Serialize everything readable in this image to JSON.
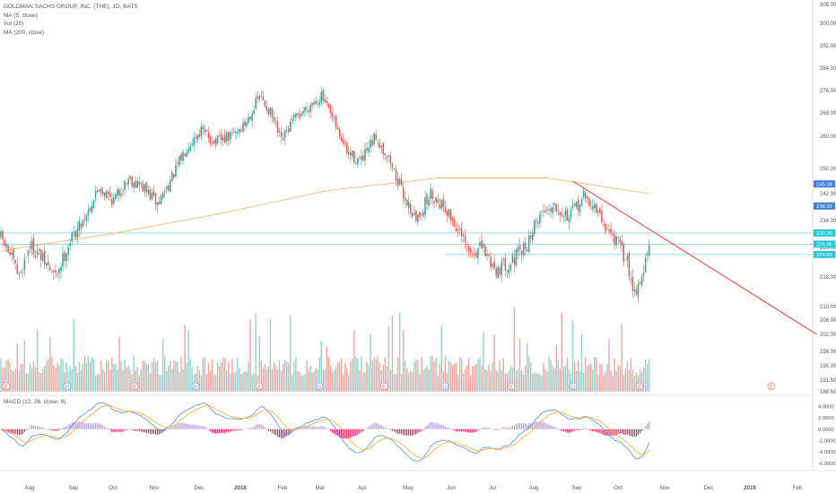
{
  "header": {
    "symbol_line": "GOLDMAN SACHS GROUP, INC. (THE), 1D, BATS",
    "indicators": [
      "MA (5, close)",
      "Vol (20)",
      "MA (200, close)"
    ]
  },
  "macd_panel": {
    "label": "MACD (12, 26, close, 9)"
  },
  "colors": {
    "up": "#26a69a",
    "down": "#ef5350",
    "vol_up": "#8fd4cb",
    "vol_down": "#f5a3a1",
    "ma200": "#f5b773",
    "trendline": "#e53935",
    "hline": "#6fd0d8",
    "macd_line": "#4e8fe8",
    "signal_line": "#ffa726",
    "hist_pos": "#b39ddb",
    "hist_neg": "#e91e63",
    "price_tag_blue": "#3f7fd8",
    "price_tag_teal": "#26c6da"
  },
  "chart_data": [
    {
      "type": "candlestick",
      "title": "GOLDMAN SACHS GROUP, INC. (THE), 1D, BATS",
      "x_axis_labels": [
        "Aug",
        "Sep",
        "Oct",
        "Nov",
        "Dec",
        "2018",
        "Feb",
        "Mar",
        "Apr",
        "May",
        "Jun",
        "Jul",
        "Aug",
        "Sep",
        "Oct",
        "Nov",
        "Dec",
        "2019",
        "Feb"
      ],
      "y_ticks": [
        "308.00",
        "300.00",
        "292.00",
        "284.00",
        "276.00",
        "268.00",
        "260.00",
        "250.00",
        "242.00",
        "234.00",
        "226.00",
        "218.00",
        "210.00",
        "206.00",
        "202.00",
        "198.00",
        "195.00",
        "191.50",
        "188.50"
      ],
      "y_tick_values": [
        308,
        300,
        292,
        284,
        276,
        268,
        260,
        250,
        242,
        234,
        226,
        218,
        210,
        206,
        202,
        198,
        195,
        191.5,
        188.5
      ],
      "price_range": [
        188.5,
        308
      ],
      "price_anchors": [
        [
          0,
          229
        ],
        [
          5,
          224
        ],
        [
          10,
          218
        ],
        [
          16,
          227
        ],
        [
          24,
          222
        ],
        [
          30,
          218
        ],
        [
          38,
          228
        ],
        [
          46,
          235
        ],
        [
          54,
          244
        ],
        [
          62,
          240
        ],
        [
          70,
          247
        ],
        [
          78,
          244
        ],
        [
          86,
          239
        ],
        [
          94,
          247
        ],
        [
          102,
          257
        ],
        [
          110,
          262
        ],
        [
          118,
          258
        ],
        [
          126,
          260
        ],
        [
          134,
          264
        ],
        [
          142,
          274
        ],
        [
          148,
          268
        ],
        [
          154,
          258
        ],
        [
          160,
          265
        ],
        [
          168,
          270
        ],
        [
          176,
          274
        ],
        [
          182,
          266
        ],
        [
          190,
          255
        ],
        [
          198,
          252
        ],
        [
          206,
          260
        ],
        [
          214,
          252
        ],
        [
          220,
          243
        ],
        [
          228,
          234
        ],
        [
          236,
          242
        ],
        [
          244,
          238
        ],
        [
          252,
          230
        ],
        [
          258,
          224
        ],
        [
          264,
          226
        ],
        [
          272,
          220
        ],
        [
          280,
          222
        ],
        [
          288,
          226
        ],
        [
          296,
          236
        ],
        [
          304,
          239
        ],
        [
          312,
          235
        ],
        [
          320,
          241
        ],
        [
          326,
          238
        ],
        [
          332,
          232
        ],
        [
          338,
          228
        ],
        [
          344,
          222
        ],
        [
          348,
          214
        ],
        [
          352,
          218
        ],
        [
          356,
          226
        ]
      ],
      "price_labels": [
        "245.08",
        "238.32",
        "230.30",
        "226.96",
        "224.09"
      ],
      "price_label_values": [
        245.08,
        238.32,
        230.3,
        226.96,
        224.09
      ],
      "moving_average_200": [
        [
          0,
          225
        ],
        [
          60,
          230
        ],
        [
          120,
          236
        ],
        [
          180,
          243
        ],
        [
          240,
          247
        ],
        [
          300,
          247
        ],
        [
          356,
          242
        ]
      ],
      "horizontal_lines": [
        230.3,
        226.96,
        224.09
      ],
      "trendline": [
        [
          314,
          246
        ],
        [
          448,
          202
        ]
      ],
      "event_markers": [
        "E",
        "D",
        "E",
        "D",
        "E",
        "D",
        "E",
        "D",
        "E",
        "D",
        "E",
        "E"
      ],
      "grid": false
    },
    {
      "type": "bar",
      "title": "Vol (20)",
      "series": []
    },
    {
      "type": "line",
      "title": "MACD (12, 26, close, 9)",
      "y_ticks": [
        "4.0000",
        "2.0000",
        "0.0000",
        "-2.0000",
        "-4.0000",
        "-6.0000"
      ],
      "y_tick_values": [
        4,
        2,
        0,
        -2,
        -4,
        -6
      ],
      "y_range": [
        -6.8,
        5
      ]
    }
  ]
}
